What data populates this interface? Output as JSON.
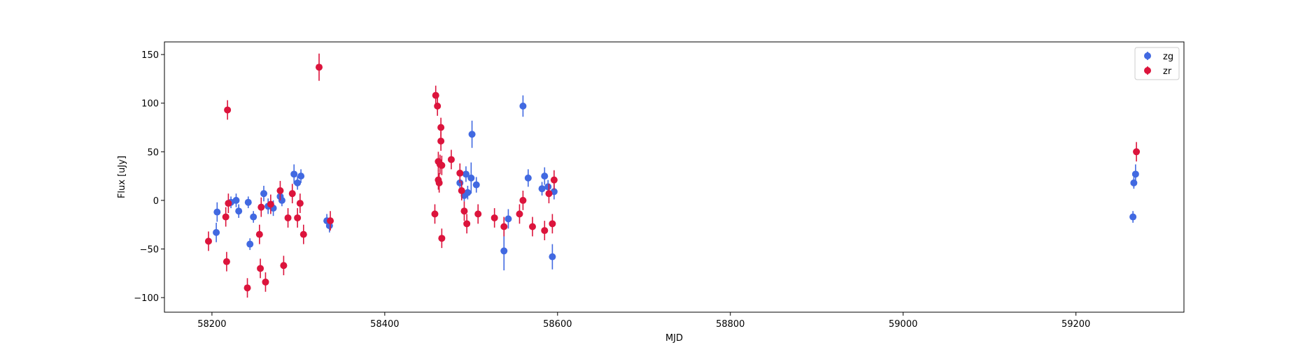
{
  "chart_data": {
    "type": "scatter",
    "title": "",
    "xlabel": "MJD",
    "ylabel": "Flux [uJy]",
    "xlim": [
      58145,
      59325
    ],
    "ylim": [
      -115,
      163
    ],
    "xticks": [
      58200,
      58400,
      58600,
      58800,
      59000,
      59200
    ],
    "yticks": [
      -100,
      -50,
      0,
      50,
      100,
      150
    ],
    "grid": false,
    "legend_position": "top-right",
    "error_bars": true,
    "series": [
      {
        "name": "zg",
        "color": "#4169e1",
        "points": [
          {
            "x": 58205,
            "y": -33,
            "err": 10
          },
          {
            "x": 58206,
            "y": -12,
            "err": 10
          },
          {
            "x": 58222,
            "y": -2,
            "err": 6
          },
          {
            "x": 58228,
            "y": 0,
            "err": 7
          },
          {
            "x": 58231,
            "y": -11,
            "err": 7
          },
          {
            "x": 58242,
            "y": -2,
            "err": 6
          },
          {
            "x": 58244,
            "y": -45,
            "err": 6
          },
          {
            "x": 58248,
            "y": -17,
            "err": 6
          },
          {
            "x": 58260,
            "y": 7,
            "err": 8
          },
          {
            "x": 58265,
            "y": -6,
            "err": 8
          },
          {
            "x": 58271,
            "y": -8,
            "err": 8
          },
          {
            "x": 58279,
            "y": 4,
            "err": 6
          },
          {
            "x": 58281,
            "y": 0,
            "err": 6
          },
          {
            "x": 58295,
            "y": 27,
            "err": 10
          },
          {
            "x": 58299,
            "y": 18,
            "err": 7
          },
          {
            "x": 58303,
            "y": 25,
            "err": 7
          },
          {
            "x": 58333,
            "y": -21,
            "err": 7
          },
          {
            "x": 58336,
            "y": -26,
            "err": 7
          },
          {
            "x": 58487,
            "y": 18,
            "err": 8
          },
          {
            "x": 58492,
            "y": 5,
            "err": 6
          },
          {
            "x": 58494,
            "y": 27,
            "err": 8
          },
          {
            "x": 58496,
            "y": 8,
            "err": 7
          },
          {
            "x": 58500,
            "y": 23,
            "err": 16
          },
          {
            "x": 58501,
            "y": 68,
            "err": 14
          },
          {
            "x": 58506,
            "y": 16,
            "err": 8
          },
          {
            "x": 58538,
            "y": -52,
            "err": 20
          },
          {
            "x": 58543,
            "y": -19,
            "err": 10
          },
          {
            "x": 58560,
            "y": 97,
            "err": 11
          },
          {
            "x": 58566,
            "y": 23,
            "err": 9
          },
          {
            "x": 58582,
            "y": 12,
            "err": 7
          },
          {
            "x": 58585,
            "y": 25,
            "err": 9
          },
          {
            "x": 58589,
            "y": 14,
            "err": 7
          },
          {
            "x": 58594,
            "y": -58,
            "err": 13
          },
          {
            "x": 58596,
            "y": 9,
            "err": 8
          },
          {
            "x": 59266,
            "y": -17,
            "err": 6
          },
          {
            "x": 59267,
            "y": 18,
            "err": 6
          },
          {
            "x": 59269,
            "y": 27,
            "err": 10
          }
        ]
      },
      {
        "name": "zr",
        "color": "#dc143c",
        "points": [
          {
            "x": 58196,
            "y": -42,
            "err": 10
          },
          {
            "x": 58216,
            "y": -17,
            "err": 10
          },
          {
            "x": 58217,
            "y": -63,
            "err": 10
          },
          {
            "x": 58218,
            "y": 93,
            "err": 10
          },
          {
            "x": 58219,
            "y": -3,
            "err": 10
          },
          {
            "x": 58241,
            "y": -90,
            "err": 10
          },
          {
            "x": 58255,
            "y": -35,
            "err": 10
          },
          {
            "x": 58256,
            "y": -70,
            "err": 10
          },
          {
            "x": 58257,
            "y": -7,
            "err": 10
          },
          {
            "x": 58262,
            "y": -84,
            "err": 10
          },
          {
            "x": 58268,
            "y": -4,
            "err": 10
          },
          {
            "x": 58279,
            "y": 10,
            "err": 10
          },
          {
            "x": 58283,
            "y": -67,
            "err": 10
          },
          {
            "x": 58288,
            "y": -18,
            "err": 10
          },
          {
            "x": 58293,
            "y": 7,
            "err": 10
          },
          {
            "x": 58299,
            "y": -18,
            "err": 10
          },
          {
            "x": 58302,
            "y": -3,
            "err": 10
          },
          {
            "x": 58306,
            "y": -35,
            "err": 10
          },
          {
            "x": 58324,
            "y": 137,
            "err": 14
          },
          {
            "x": 58337,
            "y": -21,
            "err": 10
          },
          {
            "x": 58458,
            "y": -14,
            "err": 10
          },
          {
            "x": 58459,
            "y": 108,
            "err": 10
          },
          {
            "x": 58461,
            "y": 97,
            "err": 10
          },
          {
            "x": 58462,
            "y": 40,
            "err": 10
          },
          {
            "x": 58462,
            "y": 21,
            "err": 10
          },
          {
            "x": 58463,
            "y": 18,
            "err": 10
          },
          {
            "x": 58464,
            "y": 37,
            "err": 10
          },
          {
            "x": 58465,
            "y": 75,
            "err": 10
          },
          {
            "x": 58465,
            "y": 61,
            "err": 10
          },
          {
            "x": 58466,
            "y": 36,
            "err": 10
          },
          {
            "x": 58466,
            "y": -39,
            "err": 10
          },
          {
            "x": 58477,
            "y": 42,
            "err": 10
          },
          {
            "x": 58487,
            "y": 28,
            "err": 10
          },
          {
            "x": 58489,
            "y": 10,
            "err": 10
          },
          {
            "x": 58492,
            "y": -11,
            "err": 10
          },
          {
            "x": 58495,
            "y": -24,
            "err": 10
          },
          {
            "x": 58508,
            "y": -14,
            "err": 10
          },
          {
            "x": 58527,
            "y": -18,
            "err": 10
          },
          {
            "x": 58538,
            "y": -27,
            "err": 10
          },
          {
            "x": 58556,
            "y": -14,
            "err": 10
          },
          {
            "x": 58560,
            "y": 0,
            "err": 10
          },
          {
            "x": 58571,
            "y": -27,
            "err": 10
          },
          {
            "x": 58585,
            "y": -31,
            "err": 10
          },
          {
            "x": 58590,
            "y": 7,
            "err": 10
          },
          {
            "x": 58594,
            "y": -24,
            "err": 10
          },
          {
            "x": 58596,
            "y": 21,
            "err": 10
          },
          {
            "x": 59270,
            "y": 50,
            "err": 10
          }
        ]
      }
    ]
  }
}
